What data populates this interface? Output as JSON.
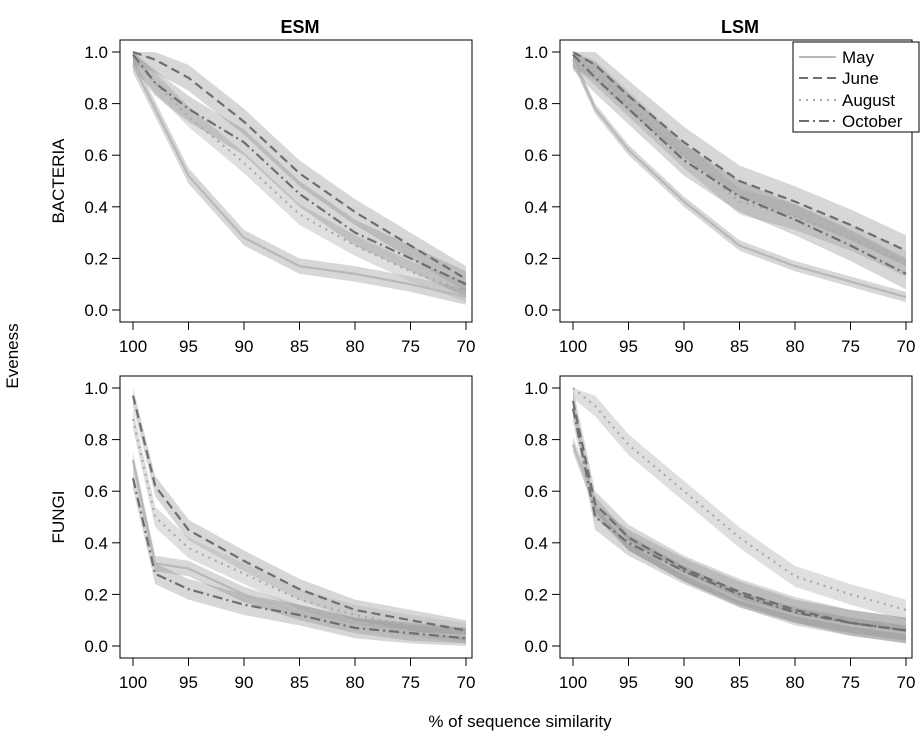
{
  "figure": {
    "col_titles": [
      "ESM",
      "LSM"
    ],
    "row_labels": [
      "BACTERIA",
      "FUNGI"
    ],
    "ylabel": "Eveness",
    "xlabel": "% of sequence similarity"
  },
  "legend": {
    "items": [
      {
        "label": "May",
        "dash": "solid",
        "color": "#b8b8b8"
      },
      {
        "label": "June",
        "dash": "dashed",
        "color": "#6e6e6e"
      },
      {
        "label": "August",
        "dash": "dotted",
        "color": "#a8a8a8"
      },
      {
        "label": "October",
        "dash": "dotdash",
        "color": "#6e6e6e"
      }
    ]
  },
  "chart_data": [
    {
      "type": "line",
      "title": "ESM",
      "row": "BACTERIA",
      "x": [
        100,
        98,
        95,
        90,
        85,
        80,
        75,
        70
      ],
      "xlim": [
        100,
        70
      ],
      "ylim": [
        0,
        1
      ],
      "xticks": [
        100,
        95,
        90,
        85,
        80,
        75,
        70
      ],
      "yticks": [
        0.0,
        0.2,
        0.4,
        0.6,
        0.8,
        1.0
      ],
      "series": [
        {
          "name": "May",
          "values": [
            0.95,
            0.78,
            0.52,
            0.28,
            0.17,
            0.14,
            0.1,
            0.05
          ],
          "band": 0.03
        },
        {
          "name": "June",
          "values": [
            1.0,
            0.97,
            0.9,
            0.73,
            0.53,
            0.38,
            0.25,
            0.12
          ],
          "band": 0.05
        },
        {
          "name": "August",
          "values": [
            0.98,
            0.88,
            0.75,
            0.57,
            0.37,
            0.25,
            0.15,
            0.07
          ],
          "band": 0.04
        },
        {
          "name": "October",
          "values": [
            0.99,
            0.88,
            0.78,
            0.65,
            0.45,
            0.3,
            0.2,
            0.1
          ],
          "band": 0.05
        }
      ]
    },
    {
      "type": "line",
      "title": "LSM",
      "row": "BACTERIA",
      "x": [
        100,
        98,
        95,
        90,
        85,
        80,
        75,
        70
      ],
      "xlim": [
        100,
        70
      ],
      "ylim": [
        0,
        1
      ],
      "xticks": [
        100,
        95,
        90,
        85,
        80,
        75,
        70
      ],
      "yticks": [
        0.0,
        0.2,
        0.4,
        0.6,
        0.8,
        1.0
      ],
      "series": [
        {
          "name": "May",
          "values": [
            0.97,
            0.78,
            0.62,
            0.42,
            0.25,
            0.17,
            0.11,
            0.05
          ],
          "band": 0.02
        },
        {
          "name": "June",
          "values": [
            1.0,
            0.95,
            0.83,
            0.65,
            0.5,
            0.42,
            0.33,
            0.23
          ],
          "band": 0.06
        },
        {
          "name": "August",
          "values": [
            1.0,
            0.92,
            0.8,
            0.6,
            0.42,
            0.36,
            0.28,
            0.18
          ],
          "band": 0.05
        },
        {
          "name": "October",
          "values": [
            0.99,
            0.9,
            0.78,
            0.58,
            0.44,
            0.35,
            0.25,
            0.14
          ],
          "band": 0.06
        }
      ]
    },
    {
      "type": "line",
      "title": "",
      "row": "FUNGI",
      "x": [
        100,
        98,
        95,
        90,
        85,
        80,
        75,
        70
      ],
      "xlim": [
        100,
        70
      ],
      "ylim": [
        0,
        1
      ],
      "xticks": [
        100,
        95,
        90,
        85,
        80,
        75,
        70
      ],
      "yticks": [
        0.0,
        0.2,
        0.4,
        0.6,
        0.8,
        1.0
      ],
      "series": [
        {
          "name": "May",
          "values": [
            0.72,
            0.32,
            0.3,
            0.2,
            0.13,
            0.08,
            0.05,
            0.04
          ],
          "band": 0.03
        },
        {
          "name": "June",
          "values": [
            0.97,
            0.62,
            0.45,
            0.33,
            0.22,
            0.14,
            0.1,
            0.06
          ],
          "band": 0.04
        },
        {
          "name": "August",
          "values": [
            0.88,
            0.5,
            0.38,
            0.28,
            0.18,
            0.12,
            0.08,
            0.05
          ],
          "band": 0.04
        },
        {
          "name": "October",
          "values": [
            0.65,
            0.28,
            0.22,
            0.16,
            0.12,
            0.07,
            0.05,
            0.03
          ],
          "band": 0.04
        }
      ]
    },
    {
      "type": "line",
      "title": "",
      "row": "FUNGI",
      "x": [
        100,
        98,
        95,
        90,
        85,
        80,
        75,
        70
      ],
      "xlim": [
        100,
        70
      ],
      "ylim": [
        0,
        1
      ],
      "xticks": [
        100,
        95,
        90,
        85,
        80,
        75,
        70
      ],
      "yticks": [
        0.0,
        0.2,
        0.4,
        0.6,
        0.8,
        1.0
      ],
      "series": [
        {
          "name": "May",
          "values": [
            0.78,
            0.55,
            0.4,
            0.28,
            0.18,
            0.12,
            0.08,
            0.05
          ],
          "band": 0.03
        },
        {
          "name": "June",
          "values": [
            0.95,
            0.55,
            0.42,
            0.3,
            0.21,
            0.14,
            0.09,
            0.06
          ],
          "band": 0.05
        },
        {
          "name": "August",
          "values": [
            1.0,
            0.93,
            0.78,
            0.6,
            0.42,
            0.27,
            0.2,
            0.14
          ],
          "band": 0.04
        },
        {
          "name": "October",
          "values": [
            0.92,
            0.5,
            0.4,
            0.29,
            0.2,
            0.13,
            0.09,
            0.06
          ],
          "band": 0.05
        }
      ]
    }
  ]
}
